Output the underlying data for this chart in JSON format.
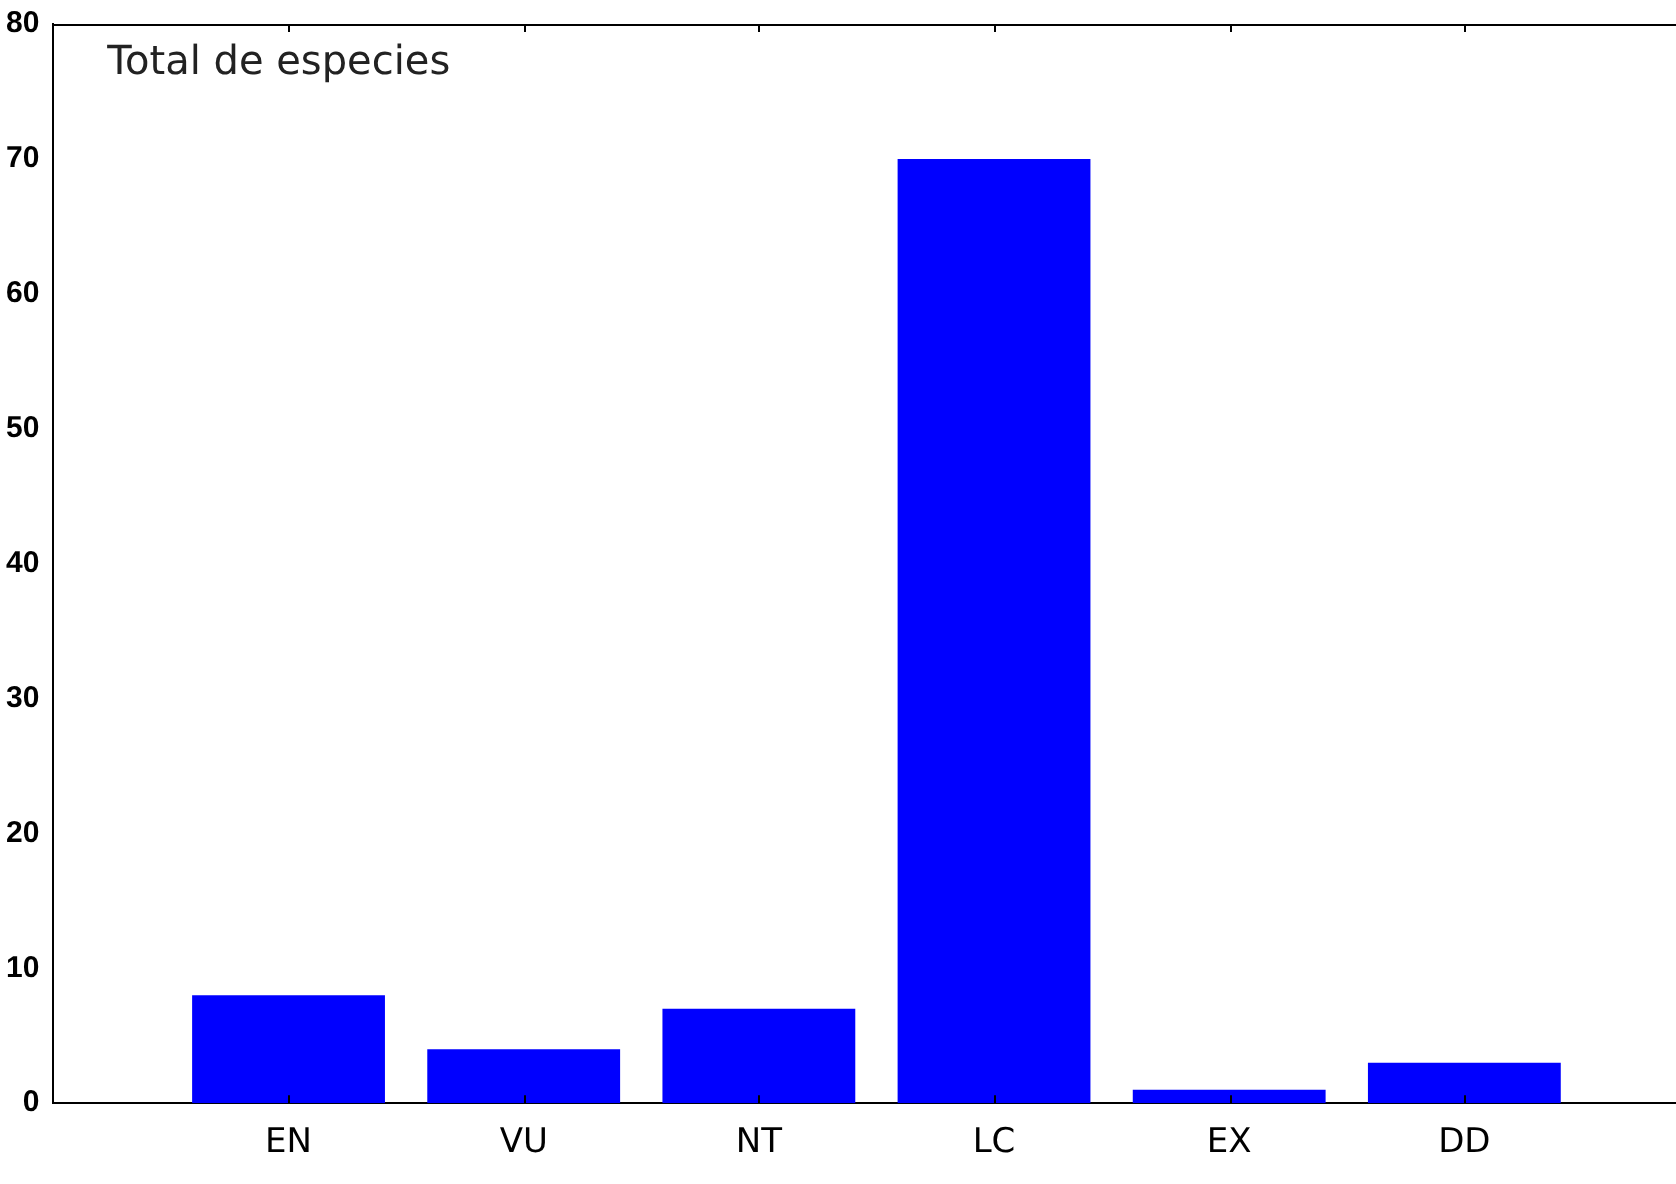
{
  "chart_data": {
    "type": "bar",
    "categories": [
      "EN",
      "VU",
      "NT",
      "LC",
      "EX",
      "DD"
    ],
    "values": [
      8,
      4,
      7,
      70,
      1,
      3
    ],
    "color": "#0000ff",
    "ylim": [
      0,
      80
    ],
    "yticks": [
      0,
      10,
      20,
      30,
      40,
      50,
      60,
      70,
      80
    ],
    "annotations": [
      "Total de especies"
    ],
    "grid": false,
    "legend": false
  }
}
